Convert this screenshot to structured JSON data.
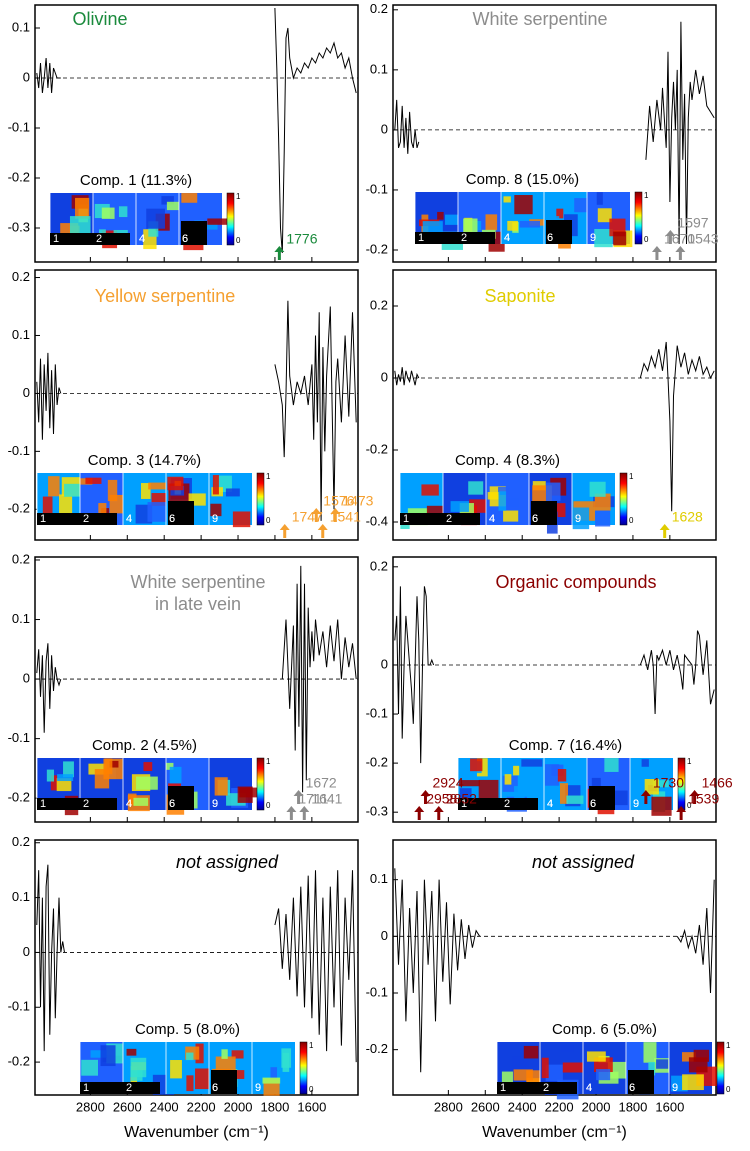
{
  "chart_data": [
    {
      "type": "line",
      "title": "Olivine",
      "title_color": "#1a8a3c",
      "xlim": [
        3100,
        1350
      ],
      "xticks": [
        2800,
        2600,
        2400,
        2200,
        2000,
        1800,
        1600
      ],
      "ylim": [
        -0.368,
        0.146
      ],
      "yticks": [
        0.1,
        0,
        -0.1,
        -0.2,
        -0.3
      ],
      "x": [
        3090,
        3080,
        3070,
        3060,
        3050,
        3040,
        3030,
        3020,
        3010,
        3000,
        2990,
        2980,
        2970,
        2960,
        2900,
        1800,
        1790,
        1780,
        1770,
        1760,
        1750,
        1740,
        1730,
        1720,
        1700,
        1680,
        1660,
        1640,
        1620,
        1600,
        1580,
        1560,
        1540,
        1520,
        1500,
        1480,
        1460,
        1440,
        1420,
        1400,
        1380,
        1360
      ],
      "values": [
        0.01,
        -0.02,
        0.03,
        -0.03,
        0.0,
        0.04,
        -0.02,
        0.03,
        -0.03,
        0.02,
        0.01,
        0.0,
        0.0,
        0.0,
        null,
        0.14,
        0.02,
        -0.12,
        -0.3,
        -0.35,
        -0.15,
        0.08,
        0.1,
        0.04,
        0.0,
        0.02,
        0.01,
        0.03,
        0.02,
        0.04,
        0.03,
        0.05,
        0.04,
        0.06,
        0.05,
        0.07,
        0.04,
        0.05,
        0.02,
        0.04,
        0.0,
        -0.03
      ],
      "peaks": [
        1776
      ],
      "peak_color": "#1a8a3c",
      "inset": {
        "label": "Comp. 1 (11.3%)",
        "tiles": [
          "1",
          "2",
          "4",
          "6"
        ],
        "colorbar": [
          1,
          0
        ]
      }
    },
    {
      "type": "line",
      "title": "White serpentine",
      "title_color": "#8c8c8c",
      "xlim": [
        3100,
        1350
      ],
      "xticks": [
        2800,
        2600,
        2400,
        2200,
        2000,
        1800,
        1600
      ],
      "ylim": [
        -0.22,
        0.208
      ],
      "yticks": [
        0.2,
        0.1,
        0,
        -0.1,
        -0.2
      ],
      "x": [
        3090,
        3080,
        3070,
        3060,
        3050,
        3040,
        3030,
        3020,
        3010,
        3000,
        2990,
        2980,
        2970,
        2960,
        2900,
        1730,
        1710,
        1690,
        1670,
        1650,
        1640,
        1630,
        1620,
        1610,
        1600,
        1590,
        1580,
        1570,
        1560,
        1550,
        1540,
        1530,
        1520,
        1510,
        1500,
        1490,
        1480,
        1460,
        1440,
        1420,
        1400,
        1380,
        1360
      ],
      "values": [
        0.0,
        0.05,
        -0.03,
        -0.02,
        0.04,
        -0.03,
        0.02,
        -0.04,
        0.03,
        -0.02,
        -0.03,
        0.0,
        -0.03,
        -0.02,
        null,
        -0.05,
        0.04,
        -0.02,
        0.05,
        0.0,
        0.07,
        0.02,
        -0.03,
        0.13,
        -0.12,
        0.02,
        0.08,
        0.0,
        0.1,
        -0.19,
        0.18,
        -0.05,
        0.06,
        -0.19,
        0.02,
        0.08,
        0.05,
        0.1,
        0.06,
        0.09,
        0.04,
        0.03,
        0.02
      ],
      "peaks": [
        1670,
        1597,
        1543
      ],
      "peak_color": "#8c8c8c",
      "inset": {
        "label": "Comp. 8 (15.0%)",
        "tiles": [
          "1",
          "2",
          "4",
          "6",
          "9"
        ],
        "colorbar": [
          1,
          0
        ]
      }
    },
    {
      "type": "line",
      "title": "Yellow serpentine",
      "title_color": "#f5a030",
      "xlim": [
        3100,
        1350
      ],
      "xticks": [
        2800,
        2600,
        2400,
        2200,
        2000,
        1800,
        1600
      ],
      "ylim": [
        -0.253,
        0.213
      ],
      "yticks": [
        0.2,
        0.1,
        0,
        -0.1,
        -0.2
      ],
      "x": [
        3090,
        3080,
        3070,
        3060,
        3050,
        3040,
        3030,
        3020,
        3010,
        3000,
        2990,
        2980,
        2970,
        2960,
        2900,
        1800,
        1780,
        1760,
        1750,
        1740,
        1730,
        1720,
        1700,
        1680,
        1660,
        1640,
        1620,
        1600,
        1590,
        1580,
        1570,
        1560,
        1550,
        1540,
        1530,
        1520,
        1500,
        1490,
        1480,
        1470,
        1460,
        1440,
        1420,
        1400,
        1380,
        1360
      ],
      "values": [
        0.02,
        -0.05,
        0.06,
        -0.08,
        0.05,
        -0.03,
        0.07,
        -0.06,
        0.04,
        -0.07,
        0.05,
        -0.02,
        0.01,
        0.0,
        null,
        0.05,
        0.02,
        -0.02,
        -0.11,
        0.0,
        0.16,
        0.03,
        -0.02,
        0.02,
        0.0,
        0.03,
        -0.02,
        0.05,
        -0.08,
        0.1,
        -0.05,
        0.14,
        -0.22,
        0.08,
        -0.1,
        0.03,
        0.15,
        -0.03,
        -0.2,
        0.02,
        0.06,
        -0.05,
        0.1,
        -0.04,
        0.14,
        -0.05
      ],
      "peaks": [
        1747,
        1576,
        1541,
        1473
      ],
      "peak_color": "#f5a030",
      "inset": {
        "label": "Comp. 3 (14.7%)",
        "tiles": [
          "1",
          "2",
          "4",
          "6",
          "9"
        ],
        "colorbar": [
          1,
          0
        ]
      }
    },
    {
      "type": "line",
      "title": "Saponite",
      "title_color": "#e0cc00",
      "xlim": [
        3100,
        1350
      ],
      "xticks": [
        2800,
        2600,
        2400,
        2200,
        2000,
        1800,
        1600
      ],
      "ylim": [
        -0.45,
        0.3
      ],
      "yticks": [
        0.2,
        0,
        -0.2,
        -0.4
      ],
      "x": [
        3090,
        3080,
        3070,
        3060,
        3050,
        3040,
        3030,
        3020,
        3010,
        3000,
        2990,
        2980,
        2970,
        2960,
        2900,
        1760,
        1740,
        1720,
        1700,
        1680,
        1660,
        1640,
        1620,
        1610,
        1600,
        1590,
        1580,
        1560,
        1540,
        1520,
        1500,
        1480,
        1460,
        1440,
        1420,
        1400,
        1380,
        1360
      ],
      "values": [
        0.02,
        -0.02,
        0.01,
        -0.01,
        0.03,
        -0.02,
        0.02,
        0.0,
        -0.01,
        0.02,
        0.0,
        -0.02,
        0.01,
        0.0,
        null,
        0.0,
        0.04,
        0.02,
        0.06,
        0.03,
        0.08,
        0.02,
        0.1,
        0.0,
        -0.12,
        -0.37,
        -0.05,
        0.09,
        0.03,
        0.07,
        0.01,
        0.05,
        0.02,
        0.06,
        0.01,
        0.03,
        0.0,
        0.02
      ],
      "peaks": [
        1628
      ],
      "peak_color": "#e0cc00",
      "inset": {
        "label": "Comp. 4 (8.3%)",
        "tiles": [
          "1",
          "2",
          "4",
          "6",
          "9"
        ],
        "colorbar": [
          1,
          0
        ]
      }
    },
    {
      "type": "line",
      "title": [
        "White serpentine",
        "in late vein"
      ],
      "title_color": "#8c8c8c",
      "xlim": [
        3100,
        1350
      ],
      "xticks": [
        2800,
        2600,
        2400,
        2200,
        2000,
        1800,
        1600
      ],
      "ylim": [
        -0.24,
        0.205
      ],
      "yticks": [
        0.2,
        0.1,
        0,
        -0.1,
        -0.2
      ],
      "x": [
        3090,
        3080,
        3070,
        3060,
        3050,
        3040,
        3030,
        3020,
        3010,
        3000,
        2990,
        2980,
        2970,
        2960,
        2900,
        1760,
        1740,
        1720,
        1700,
        1690,
        1680,
        1670,
        1660,
        1650,
        1640,
        1630,
        1620,
        1610,
        1600,
        1590,
        1580,
        1560,
        1540,
        1520,
        1500,
        1480,
        1460,
        1440,
        1420,
        1400,
        1380,
        1360
      ],
      "values": [
        0.01,
        0.05,
        -0.03,
        0.04,
        -0.09,
        0.03,
        0.06,
        -0.05,
        0.04,
        -0.02,
        0.02,
        0.0,
        -0.01,
        0.0,
        null,
        0.0,
        0.1,
        -0.05,
        0.09,
        -0.12,
        0.16,
        -0.08,
        0.19,
        -0.19,
        0.16,
        -0.17,
        0.12,
        0.02,
        0.08,
        0.03,
        0.1,
        0.04,
        0.08,
        0.02,
        0.09,
        0.03,
        0.1,
        0.0,
        0.07,
        0.02,
        0.06,
        0.0
      ],
      "peaks": [
        1711,
        1672,
        1641
      ],
      "peak_color": "#8c8c8c",
      "inset": {
        "label": "Comp. 2 (4.5%)",
        "tiles": [
          "1",
          "2",
          "4",
          "6",
          "9"
        ],
        "colorbar": [
          1,
          0
        ]
      }
    },
    {
      "type": "line",
      "title": "Organic compounds",
      "title_color": "#8b0000",
      "xlim": [
        3100,
        1350
      ],
      "xticks": [
        2800,
        2600,
        2400,
        2200,
        2000,
        1800,
        1600
      ],
      "ylim": [
        -0.32,
        0.22
      ],
      "yticks": [
        0.2,
        0,
        -0.1,
        -0.2,
        -0.3
      ],
      "x": [
        3090,
        3080,
        3070,
        3060,
        3050,
        3040,
        3030,
        3020,
        3010,
        3000,
        2990,
        2980,
        2970,
        2960,
        2950,
        2940,
        2930,
        2920,
        2910,
        2900,
        2890,
        2880,
        2800,
        1760,
        1740,
        1720,
        1700,
        1690,
        1680,
        1670,
        1660,
        1640,
        1620,
        1600,
        1580,
        1560,
        1540,
        1530,
        1520,
        1500,
        1480,
        1470,
        1460,
        1450,
        1440,
        1420,
        1400,
        1380,
        1360
      ],
      "values": [
        0.05,
        0.1,
        -0.1,
        0.16,
        -0.15,
        0.0,
        0.1,
        0.05,
        0.0,
        -0.05,
        -0.12,
        0.0,
        0.14,
        0.05,
        -0.2,
        0.0,
        0.16,
        0.14,
        0.0,
        0.0,
        0.01,
        0.0,
        null,
        0.0,
        0.02,
        -0.01,
        0.03,
        0.0,
        -0.1,
        0.02,
        0.01,
        0.03,
        0.0,
        0.03,
        -0.01,
        0.02,
        -0.02,
        -0.05,
        0.02,
        0.01,
        0.0,
        -0.04,
        0.0,
        0.07,
        0.06,
        -0.02,
        0.05,
        -0.08,
        -0.05
      ],
      "peaks": [
        2958,
        2924,
        2852,
        1730,
        1539,
        1466
      ],
      "peak_color": "#8b0000",
      "inset": {
        "label": "Comp. 7 (16.4%)",
        "tiles": [
          "1",
          "2",
          "4",
          "6",
          "9"
        ],
        "colorbar": [
          1,
          0
        ]
      }
    },
    {
      "type": "line",
      "title": "not assigned",
      "title_color": "#000000",
      "title_style": "italic",
      "xlim": [
        3100,
        1350
      ],
      "xticks": [
        2800,
        2600,
        2400,
        2200,
        2000,
        1800,
        1600
      ],
      "xlabel": "Wavenumber (cm⁻¹)",
      "ylim": [
        -0.26,
        0.205
      ],
      "yticks": [
        0.2,
        0.1,
        0,
        -0.1,
        -0.2
      ],
      "x": [
        3090,
        3080,
        3070,
        3060,
        3050,
        3040,
        3030,
        3020,
        3010,
        3000,
        2990,
        2980,
        2970,
        2960,
        2950,
        2940,
        2900,
        1800,
        1780,
        1760,
        1740,
        1720,
        1700,
        1680,
        1660,
        1640,
        1620,
        1600,
        1580,
        1560,
        1540,
        1520,
        1500,
        1480,
        1460,
        1440,
        1420,
        1400,
        1380,
        1360
      ],
      "values": [
        0.05,
        0.15,
        -0.1,
        0.1,
        -0.18,
        0.12,
        0.16,
        -0.15,
        0.0,
        0.08,
        -0.12,
        0.0,
        0.1,
        0.0,
        0.02,
        0.0,
        null,
        0.05,
        0.08,
        -0.03,
        0.07,
        -0.05,
        0.1,
        -0.08,
        0.12,
        -0.1,
        0.14,
        -0.12,
        0.15,
        -0.15,
        0.1,
        -0.18,
        0.12,
        -0.1,
        0.15,
        -0.17,
        0.1,
        -0.05,
        0.15,
        -0.2
      ],
      "inset": {
        "label": "Comp. 5 (8.0%)",
        "tiles": [
          "1",
          "2",
          "",
          "6",
          "9"
        ],
        "colorbar": [
          1,
          0
        ]
      }
    },
    {
      "type": "line",
      "title": "not assigned",
      "title_color": "#000000",
      "title_style": "italic",
      "xlim": [
        3100,
        1350
      ],
      "xticks": [
        2800,
        2600,
        2400,
        2200,
        2000,
        1800,
        1600
      ],
      "xlabel": "Wavenumber (cm⁻¹)",
      "ylim": [
        -0.28,
        0.17
      ],
      "yticks": [
        0.1,
        0,
        -0.1,
        -0.2
      ],
      "x": [
        3090,
        3070,
        3050,
        3030,
        3010,
        2990,
        2970,
        2950,
        2930,
        2910,
        2890,
        2870,
        2850,
        2830,
        2810,
        2790,
        2770,
        2750,
        2730,
        2710,
        2690,
        2670,
        2650,
        2630,
        2000,
        1560,
        1540,
        1520,
        1500,
        1480,
        1460,
        1440,
        1420,
        1400,
        1380,
        1360
      ],
      "values": [
        0.12,
        -0.05,
        0.1,
        -0.15,
        0.05,
        -0.1,
        0.08,
        -0.24,
        0.1,
        -0.05,
        0.08,
        -0.15,
        0.1,
        -0.08,
        0.06,
        -0.12,
        0.04,
        -0.06,
        0.03,
        -0.04,
        0.02,
        -0.02,
        0.01,
        0.0,
        null,
        0.0,
        -0.01,
        0.01,
        -0.02,
        0.0,
        -0.03,
        0.02,
        -0.05,
        0.05,
        -0.1,
        0.1
      ],
      "inset": {
        "label": "Comp. 6 (5.0%)",
        "tiles": [
          "1",
          "2",
          "4",
          "6",
          "9"
        ],
        "colorbar": [
          1,
          0
        ]
      }
    }
  ]
}
